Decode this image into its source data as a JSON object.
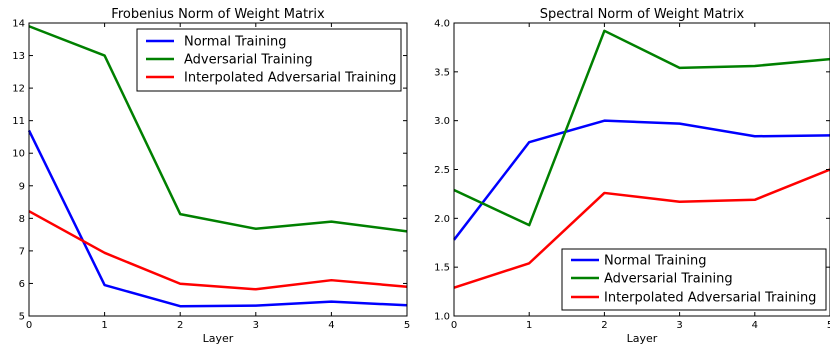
{
  "chart_data": [
    {
      "type": "line",
      "title": "Frobenius Norm of Weight Matrix",
      "xlabel": "Layer",
      "ylabel": "",
      "x": [
        0,
        1,
        2,
        3,
        4,
        5
      ],
      "xlim": [
        0,
        5
      ],
      "ylim": [
        5,
        14
      ],
      "xticks": [
        "0",
        "1",
        "2",
        "3",
        "4",
        "5"
      ],
      "yticks": [
        "5",
        "6",
        "7",
        "8",
        "9",
        "10",
        "11",
        "12",
        "13",
        "14"
      ],
      "grid": false,
      "legend": "top-right",
      "series": [
        {
          "name": "Normal Training",
          "color": "#0000ff",
          "values": [
            10.7,
            5.95,
            5.3,
            5.32,
            5.44,
            5.33
          ]
        },
        {
          "name": "Adversarial Training",
          "color": "#008000",
          "values": [
            13.9,
            13.0,
            8.13,
            7.68,
            7.9,
            7.6
          ]
        },
        {
          "name": "Interpolated Adversarial Training",
          "color": "#ff0000",
          "values": [
            8.22,
            6.94,
            5.99,
            5.82,
            6.1,
            5.9
          ]
        }
      ]
    },
    {
      "type": "line",
      "title": "Spectral Norm of Weight Matrix",
      "xlabel": "Layer",
      "ylabel": "",
      "x": [
        0,
        1,
        2,
        3,
        4,
        5
      ],
      "xlim": [
        0,
        5
      ],
      "ylim": [
        1.0,
        4.0
      ],
      "xticks": [
        "0",
        "1",
        "2",
        "3",
        "4",
        "5"
      ],
      "yticks": [
        "1.0",
        "1.5",
        "2.0",
        "2.5",
        "3.0",
        "3.5",
        "4.0"
      ],
      "grid": false,
      "legend": "bottom-right",
      "series": [
        {
          "name": "Normal Training",
          "color": "#0000ff",
          "values": [
            1.78,
            2.78,
            3.0,
            2.97,
            2.84,
            2.85
          ]
        },
        {
          "name": "Adversarial Training",
          "color": "#008000",
          "values": [
            2.29,
            1.93,
            3.92,
            3.54,
            3.56,
            3.63
          ]
        },
        {
          "name": "Interpolated Adversarial Training",
          "color": "#ff0000",
          "values": [
            1.29,
            1.54,
            2.26,
            2.17,
            2.19,
            2.5
          ]
        }
      ]
    }
  ]
}
